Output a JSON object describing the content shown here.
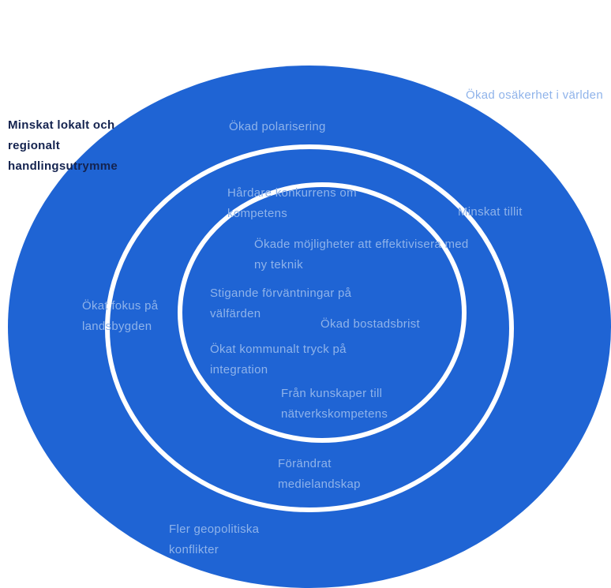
{
  "colors": {
    "ring_fill": "#1f64d4",
    "ring_line": "#ffffff",
    "text_light": "#8fb3ea",
    "text_dark": "#14234f"
  },
  "labels": {
    "minskat_lokalt": "Minskat lokalt och regionalt handlingsutrymme",
    "okad_polarisering": "Ökad polarisering",
    "okad_osakerhet": "Ökad osäkerhet i världen",
    "hardare_konkurrens": "Hårdare konkurrens om kompetens",
    "minskat_tillit": "Minskat tillit",
    "okade_mojligheter": "Ökade möjligheter att effektivisera med ny teknik",
    "stigande_forvantningar": "Stigande förväntningar på välfärden",
    "okat_fokus": "Ökat fokus på landsbygden",
    "okad_bostadsbrist": "Ökad bostadsbrist",
    "okat_kommunalt_tryck": "Ökat kommunalt tryck på integration",
    "fran_kunskaper": "Från kunskaper till nätverkskompetens",
    "forandrat_medielandskap": "Förändrat medielandskap",
    "fler_geopolitiska": "Fler geopolitiska konflikter"
  }
}
